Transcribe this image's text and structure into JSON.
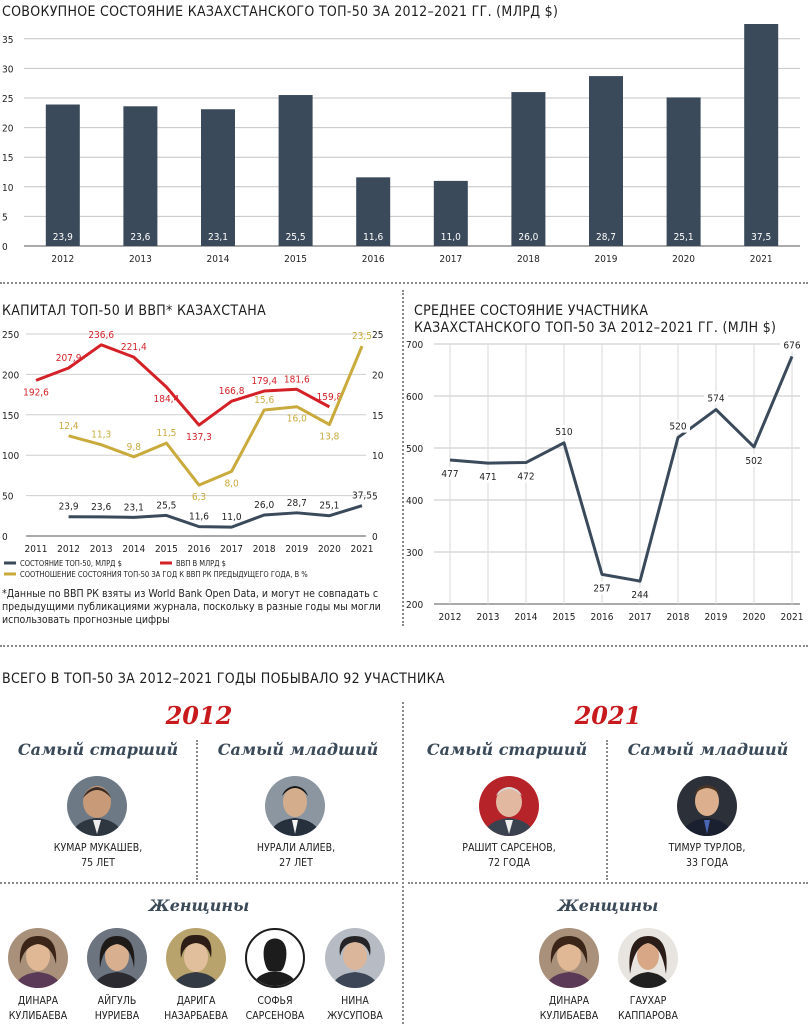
{
  "chart_data": [
    {
      "type": "bar",
      "title": "СОВОКУПНОЕ СОСТОЯНИЕ КАЗАХСТАНСКОГО ТОП-50 ЗА 2012–2021 ГГ. (МЛРД $)",
      "categories": [
        "2012",
        "2013",
        "2014",
        "2015",
        "2016",
        "2017",
        "2018",
        "2019",
        "2020",
        "2021"
      ],
      "values": [
        23.9,
        23.6,
        23.1,
        25.5,
        11.6,
        11.0,
        26.0,
        28.7,
        25.1,
        37.5
      ],
      "data_labels": [
        "23,9",
        "23,6",
        "23,1",
        "25,5",
        "11,6",
        "11,0",
        "26,0",
        "28,7",
        "25,1",
        "37,5"
      ],
      "yticks": [
        "0",
        "5",
        "10",
        "15",
        "20",
        "25",
        "30",
        "35"
      ],
      "ylim": [
        0,
        37.5
      ],
      "grid": true,
      "colors": {
        "bar": "#3a4a5a"
      }
    },
    {
      "type": "line",
      "title": "КАПИТАЛ ТОП-50 И ВВП* КАЗАХСТАНА",
      "x": [
        "2011",
        "2012",
        "2013",
        "2014",
        "2015",
        "2016",
        "2017",
        "2018",
        "2019",
        "2020",
        "2021"
      ],
      "left_yticks": [
        "0",
        "50",
        "100",
        "150",
        "200",
        "250"
      ],
      "right_yticks": [
        "0",
        "5",
        "10",
        "15",
        "20",
        "25"
      ],
      "left_ylim": [
        0,
        250
      ],
      "right_ylim": [
        0,
        25
      ],
      "series": [
        {
          "name": "СОСТОЯНИЕ ТОП-50, МЛРД $",
          "axis": "left",
          "color": "#3a4a5a",
          "values": [
            null,
            23.9,
            23.6,
            23.1,
            25.5,
            11.6,
            11.0,
            26.0,
            28.7,
            25.1,
            37.5
          ],
          "labels": [
            null,
            "23,9",
            "23,6",
            "23,1",
            "25,5",
            "11,6",
            "11,0",
            "26,0",
            "28,7",
            "25,1",
            "37,5"
          ]
        },
        {
          "name": "ВВП В МЛРД $",
          "axis": "left",
          "color": "#d42027",
          "values": [
            192.6,
            207.9,
            236.6,
            221.4,
            184.4,
            137.3,
            166.8,
            179.4,
            181.6,
            159.8,
            null
          ],
          "labels": [
            "192,6",
            "207,9",
            "236,6",
            "221,4",
            "184,4",
            "137,3",
            "166,8",
            "179,4",
            "181,6",
            "159,8",
            null
          ]
        },
        {
          "name": "СООТНОШЕНИЕ СОСТОЯНИЯ ТОП-50 ЗА ГОД К ВВП РК ПРЕДЫДУЩЕГО ГОДА, В %",
          "axis": "right",
          "color": "#c9aa3c",
          "values": [
            null,
            12.4,
            11.3,
            9.8,
            11.5,
            6.3,
            8.0,
            15.6,
            16.0,
            13.8,
            23.5
          ],
          "labels": [
            null,
            "12,4",
            "11,3",
            "9,8",
            "11,5",
            "6,3",
            "8,0",
            "15,6",
            "16,0",
            "13,8",
            "23,5"
          ]
        }
      ],
      "note": "*Данные по ВВП РК взяты из World Bank Open Data, и могут не совпадать с предыдущими публикациями журнала, поскольку в разные годы мы могли использовать прогнозные цифры",
      "legend_position": "bottom-left"
    },
    {
      "type": "line",
      "title_lines": [
        "СРЕДНЕЕ СОСТОЯНИЕ УЧАСТНИКА",
        "КАЗАХСТАНСКОГО ТОП-50 ЗА 2012–2021 ГГ. (МЛН $)"
      ],
      "x": [
        "2012",
        "2013",
        "2014",
        "2015",
        "2016",
        "2017",
        "2018",
        "2019",
        "2020",
        "2021"
      ],
      "values": [
        477,
        471,
        472,
        510,
        257,
        244,
        520,
        574,
        502,
        676
      ],
      "labels": [
        "477",
        "471",
        "472",
        "510",
        "257",
        "244",
        "520",
        "574",
        "502",
        "676"
      ],
      "yticks": [
        "200",
        "300",
        "400",
        "500",
        "600",
        "700"
      ],
      "ylim": [
        200,
        700
      ],
      "grid": true,
      "colors": {
        "line": "#3a4a5a"
      }
    }
  ],
  "participants": {
    "title": "ВСЕГО В ТОП-50 ЗА 2012–2021 ГОДЫ ПОБЫВАЛО 92 УЧАСТНИКА",
    "left": {
      "year": "2012",
      "oldest_label": "Самый старший",
      "youngest_label": "Самый младший",
      "women_label": "Женщины",
      "oldest": {
        "name": "КУМАР МУКАШЕВ,",
        "age": "75 ЛЕТ"
      },
      "youngest": {
        "name": "НУРАЛИ АЛИЕВ,",
        "age": "27 ЛЕТ"
      },
      "women": [
        {
          "line1": "ДИНАРА",
          "line2": "КУЛИБАЕВА"
        },
        {
          "line1": "АЙГУЛЬ",
          "line2": "НУРИЕВА"
        },
        {
          "line1": "ДАРИГА",
          "line2": "НАЗАРБАЕВА"
        },
        {
          "line1": "СОФЬЯ",
          "line2": "САРСЕНОВА"
        },
        {
          "line1": "НИНА",
          "line2": "ЖУСУПОВА"
        }
      ]
    },
    "right": {
      "year": "2021",
      "oldest_label": "Самый старший",
      "youngest_label": "Самый младший",
      "women_label": "Женщины",
      "oldest": {
        "name": "РАШИТ САРСЕНОВ,",
        "age": "72 ГОДА"
      },
      "youngest": {
        "name": "ТИМУР ТУРЛОВ,",
        "age": "33 ГОДА"
      },
      "women": [
        {
          "line1": "ДИНАРА",
          "line2": "КУЛИБАЕВА"
        },
        {
          "line1": "ГАУХАР",
          "line2": "КАППАРОВА"
        }
      ]
    }
  }
}
